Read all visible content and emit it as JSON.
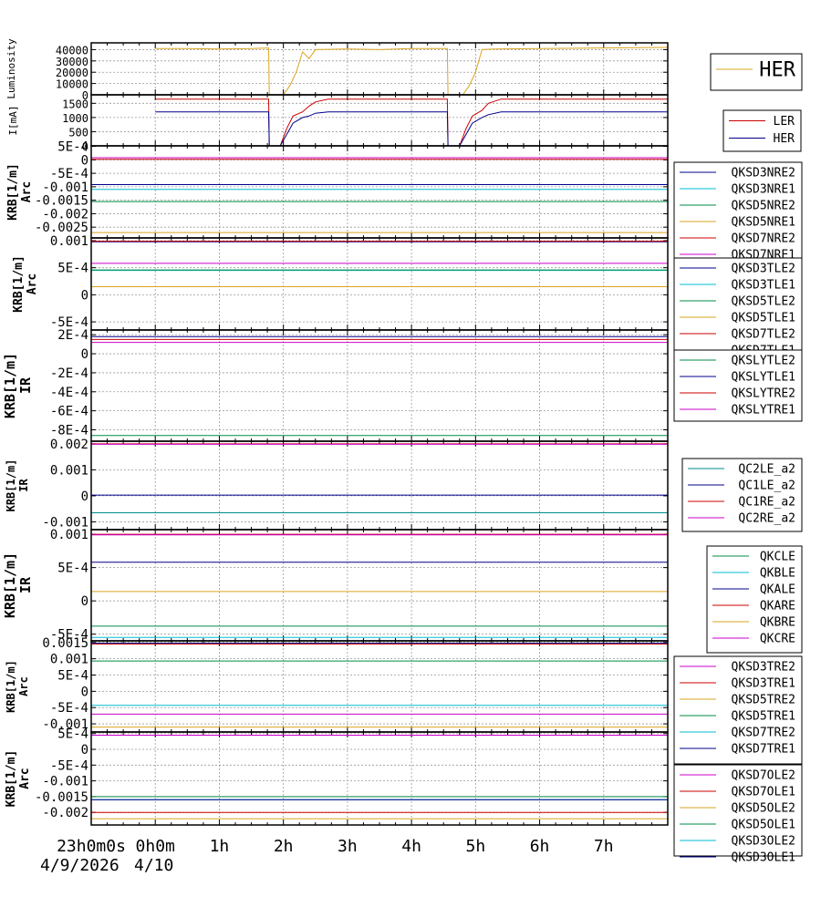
{
  "chart_data": [
    {
      "type": "line",
      "ylabel_lines": [
        "Luminosity"
      ],
      "ylim": [
        0,
        46000
      ],
      "yticks": [
        {
          "v": 0,
          "t": "0"
        },
        {
          "v": 10000,
          "t": "10000"
        },
        {
          "v": 20000,
          "t": "20000"
        },
        {
          "v": 30000,
          "t": "30000"
        },
        {
          "v": 40000,
          "t": "40000"
        }
      ],
      "legend": [
        "HER"
      ],
      "series": [
        {
          "name": "HER",
          "color": "#daa520",
          "x": [
            0,
            0.5,
            1,
            1.5,
            1.77,
            1.78,
            2.0,
            2.1,
            2.2,
            2.3,
            2.4,
            2.5,
            3.0,
            3.5,
            4.0,
            4.56,
            4.57,
            4.8,
            4.9,
            5.0,
            5.1,
            5.3,
            6.0,
            7.0,
            8.0
          ],
          "y": [
            41000,
            41000,
            40500,
            41000,
            41500,
            0,
            0,
            8000,
            20000,
            38000,
            32000,
            40000,
            40500,
            40000,
            41000,
            41000,
            0,
            0,
            8000,
            20000,
            40000,
            40500,
            41000,
            41500,
            42000
          ]
        }
      ]
    },
    {
      "type": "line",
      "ylabel_lines": [
        "I[mA]"
      ],
      "ylim": [
        0,
        1800
      ],
      "yticks": [
        {
          "v": 0,
          "t": "0"
        },
        {
          "v": 500,
          "t": "500"
        },
        {
          "v": 1000,
          "t": "1000"
        },
        {
          "v": 1500,
          "t": "1500"
        }
      ],
      "legend": [
        "LER",
        "HER"
      ],
      "series": [
        {
          "name": "LER",
          "color": "#cc0000",
          "x": [
            0,
            1.77,
            1.78,
            1.95,
            2.05,
            2.15,
            2.3,
            2.4,
            2.5,
            2.7,
            4.56,
            4.57,
            4.75,
            4.85,
            4.95,
            5.1,
            5.2,
            5.4,
            8.0
          ],
          "y": [
            1650,
            1650,
            0,
            0,
            600,
            1050,
            1200,
            1400,
            1550,
            1650,
            1650,
            0,
            0,
            600,
            1050,
            1250,
            1500,
            1650,
            1650
          ]
        },
        {
          "name": "HER",
          "color": "#00008b",
          "x": [
            0,
            1.77,
            1.78,
            1.95,
            2.05,
            2.15,
            2.3,
            2.4,
            2.5,
            2.7,
            4.56,
            4.57,
            4.75,
            4.85,
            4.95,
            5.1,
            5.2,
            5.4,
            8.0
          ],
          "y": [
            1200,
            1200,
            0,
            0,
            400,
            800,
            1000,
            1050,
            1150,
            1200,
            1200,
            0,
            0,
            400,
            800,
            1000,
            1100,
            1200,
            1200
          ]
        }
      ]
    },
    {
      "type": "line",
      "ylabel_lines": [
        "KRB[1/m]",
        "Arc"
      ],
      "ylim": [
        -0.0029,
        0.00052
      ],
      "yticks": [
        {
          "v": 0.0005,
          "t": "5E-4"
        },
        {
          "v": 0,
          "t": "0"
        },
        {
          "v": -0.0005,
          "t": "-5E-4"
        },
        {
          "v": -0.001,
          "t": "-0.001"
        },
        {
          "v": -0.0015,
          "t": "-0.0015"
        },
        {
          "v": -0.002,
          "t": "-0.002"
        },
        {
          "v": -0.0025,
          "t": "-0.0025"
        }
      ],
      "legend": [
        "QKSD3NRE2",
        "QKSD3NRE1",
        "QKSD5NRE2",
        "QKSD5NRE1",
        "QKSD7NRE2",
        "QKSD7NRE1"
      ],
      "series": [
        {
          "name": "QKSD3NRE2",
          "color": "#00008b",
          "value": -0.00092
        },
        {
          "name": "QKSD3NRE1",
          "color": "#00bcd4",
          "value": -0.0011
        },
        {
          "name": "QKSD5NRE2",
          "color": "#008b45",
          "value": -0.00155
        },
        {
          "name": "QKSD5NRE1",
          "color": "#daa520",
          "value": -0.0027
        },
        {
          "name": "QKSD7NRE2",
          "color": "#cc0000",
          "value": 2e-05
        },
        {
          "name": "QKSD7NRE1",
          "color": "#cc00cc",
          "value": 8e-05
        }
      ]
    },
    {
      "type": "line",
      "ylabel_lines": [
        "KRB[1/m]",
        "Arc"
      ],
      "ylim": [
        -0.00065,
        0.00105
      ],
      "yticks": [
        {
          "v": 0.001,
          "t": "0.001"
        },
        {
          "v": 0.0005,
          "t": "5E-4"
        },
        {
          "v": 0,
          "t": "0"
        },
        {
          "v": -0.0005,
          "t": "-5E-4"
        }
      ],
      "legend": [
        "QKSD3TLE2",
        "QKSD3TLE1",
        "QKSD5TLE2",
        "QKSD5TLE1",
        "QKSD7TLE2",
        "QKSD7TLE1"
      ],
      "series": [
        {
          "name": "QKSD3TLE2",
          "color": "#00008b",
          "value": 0.00098
        },
        {
          "name": "QKSD3TLE1",
          "color": "#00bcd4",
          "value": 0.00045
        },
        {
          "name": "QKSD5TLE2",
          "color": "#008b45",
          "value": 0.00046
        },
        {
          "name": "QKSD5TLE1",
          "color": "#daa520",
          "value": 0.00015
        },
        {
          "name": "QKSD7TLE2",
          "color": "#cc0000",
          "value": 0.00099
        },
        {
          "name": "QKSD7TLE1",
          "color": "#cc00cc",
          "value": 0.00058
        }
      ]
    },
    {
      "type": "line",
      "ylabel_lines": [
        "KRB[1/m]",
        "IR"
      ],
      "ylim": [
        -0.00092,
        0.00025
      ],
      "yticks": [
        {
          "v": 0.0002,
          "t": "2E-4"
        },
        {
          "v": 0,
          "t": "0"
        },
        {
          "v": -0.0002,
          "t": "-2E-4"
        },
        {
          "v": -0.0004,
          "t": "-4E-4"
        },
        {
          "v": -0.0006,
          "t": "-6E-4"
        },
        {
          "v": -0.0008,
          "t": "-8E-4"
        }
      ],
      "legend": [
        "QKSLYTLE2",
        "QKSLYTLE1",
        "QKSLYTRE2",
        "QKSLYTRE1"
      ],
      "series": [
        {
          "name": "QKSLYTLE2",
          "color": "#008b45",
          "value": -0.00086
        },
        {
          "name": "QKSLYTLE1",
          "color": "#00008b",
          "value": 0.00018
        },
        {
          "name": "QKSLYTRE2",
          "color": "#cc0000",
          "value": 0.00015
        },
        {
          "name": "QKSLYTRE1",
          "color": "#cc00cc",
          "value": 0.00012
        }
      ]
    },
    {
      "type": "line",
      "ylabel_lines": [
        "KRB[1/m]",
        "IR"
      ],
      "ylim": [
        -0.0013,
        0.0021
      ],
      "yticks": [
        {
          "v": 0.002,
          "t": "0.002"
        },
        {
          "v": 0.001,
          "t": "0.001"
        },
        {
          "v": 0,
          "t": "0"
        },
        {
          "v": -0.001,
          "t": "-0.001"
        }
      ],
      "legend": [
        "QC2LE_a2",
        "QC1LE_a2",
        "QC1RE_a2",
        "QC2RE_a2"
      ],
      "series": [
        {
          "name": "QC2LE_a2",
          "color": "#008b8b",
          "value": -0.00065
        },
        {
          "name": "QC1LE_a2",
          "color": "#00008b",
          "value": 3e-05
        },
        {
          "name": "QC1RE_a2",
          "color": "#cc0000",
          "value": 0.002
        },
        {
          "name": "QC2RE_a2",
          "color": "#cc00cc",
          "value": 0.00198
        }
      ]
    },
    {
      "type": "line",
      "ylabel_lines": [
        "KRB[1/m]",
        "IR"
      ],
      "ylim": [
        -0.0006,
        0.00107
      ],
      "yticks": [
        {
          "v": 0.001,
          "t": "0.001"
        },
        {
          "v": 0.0005,
          "t": "5E-4"
        },
        {
          "v": 0,
          "t": "0"
        },
        {
          "v": -0.0005,
          "t": "-5E-4"
        }
      ],
      "legend": [
        "QKCLE",
        "QKBLE",
        "QKALE",
        "QKARE",
        "QKBRE",
        "QKCRE"
      ],
      "series": [
        {
          "name": "QKCLE",
          "color": "#008b45",
          "value": -0.00038
        },
        {
          "name": "QKBLE",
          "color": "#00bcd4",
          "value": -0.00055
        },
        {
          "name": "QKALE",
          "color": "#00008b",
          "value": 0.00058
        },
        {
          "name": "QKARE",
          "color": "#cc0000",
          "value": 0.001
        },
        {
          "name": "QKBRE",
          "color": "#daa520",
          "value": 0.00014
        },
        {
          "name": "QKCRE",
          "color": "#cc00cc",
          "value": 0.00099
        }
      ]
    },
    {
      "type": "line",
      "ylabel_lines": [
        "KRB[1/m]",
        "Arc"
      ],
      "ylim": [
        -0.00125,
        0.00155
      ],
      "yticks": [
        {
          "v": 0.0015,
          "t": "0.0015"
        },
        {
          "v": 0.001,
          "t": "0.001"
        },
        {
          "v": 0.0005,
          "t": "5E-4"
        },
        {
          "v": 0,
          "t": "0"
        },
        {
          "v": -0.0005,
          "t": "-5E-4"
        },
        {
          "v": -0.001,
          "t": "-0.001"
        }
      ],
      "legend": [
        "QKSD3TRE2",
        "QKSD3TRE1",
        "QKSD5TRE2",
        "QKSD5TRE1",
        "QKSD7TRE2",
        "QKSD7TRE1"
      ],
      "series": [
        {
          "name": "QKSD3TRE2",
          "color": "#cc00cc",
          "value": -0.0007
        },
        {
          "name": "QKSD3TRE1",
          "color": "#cc0000",
          "value": 0.00145
        },
        {
          "name": "QKSD5TRE2",
          "color": "#daa520",
          "value": -0.0011
        },
        {
          "name": "QKSD5TRE1",
          "color": "#008b45",
          "value": 0.00093
        },
        {
          "name": "QKSD7TRE2",
          "color": "#00bcd4",
          "value": -0.00043
        },
        {
          "name": "QKSD7TRE1",
          "color": "#00008b",
          "value": 0.00148
        }
      ]
    },
    {
      "type": "line",
      "ylabel_lines": [
        "KRB[1/m]",
        "Arc"
      ],
      "ylim": [
        -0.0024,
        0.00055
      ],
      "yticks": [
        {
          "v": 0.0005,
          "t": "5E-4"
        },
        {
          "v": 0,
          "t": "0"
        },
        {
          "v": -0.0005,
          "t": "-5E-4"
        },
        {
          "v": -0.001,
          "t": "-0.001"
        },
        {
          "v": -0.0015,
          "t": "-0.0015"
        },
        {
          "v": -0.002,
          "t": "-0.002"
        }
      ],
      "legend": [
        "QKSD7OLE2",
        "QKSD7OLE1",
        "QKSD5OLE2",
        "QKSD5OLE1",
        "QKSD3OLE2",
        "QKSD3OLE1"
      ],
      "series": [
        {
          "name": "QKSD7OLE2",
          "color": "#cc00cc",
          "value": 0.00045
        },
        {
          "name": "QKSD7OLE1",
          "color": "#cc0000",
          "value": -0.002
        },
        {
          "name": "QKSD5OLE2",
          "color": "#daa520",
          "value": -0.0022
        },
        {
          "name": "QKSD5OLE1",
          "color": "#008b45",
          "value": -0.0015
        },
        {
          "name": "QKSD3OLE2",
          "color": "#00bcd4",
          "value": -0.0016
        },
        {
          "name": "QKSD3OLE1",
          "color": "#00008b",
          "value": -0.0016
        }
      ]
    }
  ],
  "time_axis": {
    "xlim": [
      -1,
      8
    ],
    "major_ticks": [
      {
        "v": -1,
        "t": "23h0m0s"
      },
      {
        "v": 0,
        "t": "0h0m"
      },
      {
        "v": 1,
        "t": "1h"
      },
      {
        "v": 2,
        "t": "2h"
      },
      {
        "v": 3,
        "t": "3h"
      },
      {
        "v": 4,
        "t": "4h"
      },
      {
        "v": 5,
        "t": "5h"
      },
      {
        "v": 6,
        "t": "6h"
      },
      {
        "v": 7,
        "t": "7h"
      }
    ],
    "date_labels": [
      "4/9/2026",
      "4/10"
    ]
  }
}
